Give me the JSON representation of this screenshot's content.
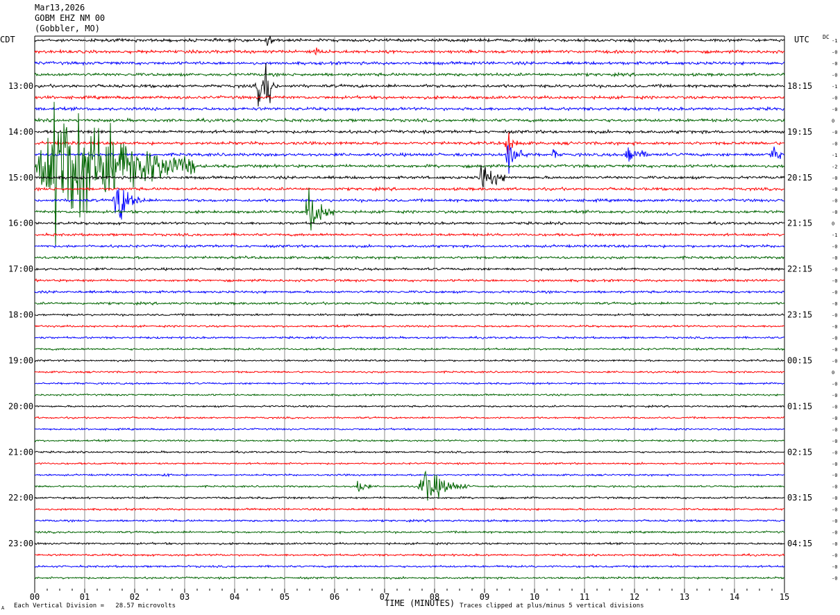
{
  "header": {
    "date": "Mar13,2026",
    "station": "GOBM EHZ NM 00",
    "location": "(Gobbler, MO)"
  },
  "left_tz": "CDT",
  "right_tz": "UTC",
  "dc_label": "DC",
  "footer": {
    "mark": "A",
    "scale": "Each Vertical Division =   28.57 microvolts",
    "clip_note": "Traces clipped at plus/minus 5 vertical divisions"
  },
  "chart_data": {
    "type": "line",
    "title": "",
    "xlabel": "TIME (MINUTES)",
    "ylabel": "",
    "xlim": [
      0,
      15
    ],
    "x_ticks": [
      "00",
      "01",
      "02",
      "03",
      "04",
      "05",
      "06",
      "07",
      "08",
      "09",
      "10",
      "11",
      "12",
      "13",
      "14",
      "15"
    ],
    "trace_minutes": 15,
    "trace_count": 48,
    "trace_colors": [
      "#000000",
      "#ff0000",
      "#0000ff",
      "#006400"
    ],
    "left_labels": [
      {
        "trace": 4,
        "label": "13:00"
      },
      {
        "trace": 8,
        "label": "14:00"
      },
      {
        "trace": 12,
        "label": "15:00"
      },
      {
        "trace": 16,
        "label": "16:00"
      },
      {
        "trace": 20,
        "label": "17:00"
      },
      {
        "trace": 24,
        "label": "18:00"
      },
      {
        "trace": 28,
        "label": "19:00"
      },
      {
        "trace": 32,
        "label": "20:00"
      },
      {
        "trace": 36,
        "label": "21:00"
      },
      {
        "trace": 40,
        "label": "22:00"
      },
      {
        "trace": 44,
        "label": "23:00"
      }
    ],
    "right_labels": [
      {
        "trace": 4,
        "label": "18:15"
      },
      {
        "trace": 8,
        "label": "19:15"
      },
      {
        "trace": 12,
        "label": "20:15"
      },
      {
        "trace": 16,
        "label": "21:15"
      },
      {
        "trace": 20,
        "label": "22:15"
      },
      {
        "trace": 24,
        "label": "23:15"
      },
      {
        "trace": 28,
        "label": "00:15"
      },
      {
        "trace": 32,
        "label": "01:15"
      },
      {
        "trace": 36,
        "label": "02:15"
      },
      {
        "trace": 40,
        "label": "03:15"
      },
      {
        "trace": 44,
        "label": "04:15"
      }
    ],
    "dc_offsets": [
      "-1",
      "-0",
      "-0",
      "-0",
      "-1",
      "-0",
      "-0",
      "0",
      "-0",
      "-0",
      "-1",
      "-2",
      "-0",
      "-0",
      "-0",
      "-0",
      "0",
      "-1",
      "-0",
      "-0",
      "-0",
      "-0",
      "-0",
      "-0",
      "-0",
      "-0",
      "-0",
      "-0",
      "-0",
      "0",
      "-0",
      "-0",
      "-0",
      "-0",
      "-0",
      "-0",
      "-0",
      "-0",
      "-0",
      "-0",
      "-0",
      "-0",
      "-0",
      "-0",
      "-0",
      "-0",
      "-0",
      "-0"
    ],
    "noise_by_trace": [
      1.5,
      1.5,
      1.5,
      1.5,
      1.5,
      1.5,
      1.5,
      1.5,
      1.5,
      1.5,
      1.5,
      1.5,
      1.4,
      1.4,
      1.4,
      1.4,
      1.3,
      1.3,
      1.3,
      1.3,
      1.2,
      1.2,
      1.2,
      1.2,
      1.0,
      1.0,
      1.0,
      1.0,
      0.9,
      0.9,
      0.9,
      0.9,
      0.9,
      0.9,
      0.9,
      0.9,
      0.9,
      0.9,
      0.9,
      0.9,
      1.0,
      1.0,
      1.0,
      1.0,
      1.0,
      1.0,
      1.0,
      1.0
    ],
    "events": [
      {
        "trace": 0,
        "start_min": 4.6,
        "end_min": 4.8,
        "peak": 18
      },
      {
        "trace": 1,
        "start_min": 5.55,
        "end_min": 5.95,
        "peak": 7
      },
      {
        "trace": 4,
        "start_min": 4.4,
        "end_min": 4.9,
        "peak": 18
      },
      {
        "trace": 4,
        "start_min": 4.6,
        "end_min": 4.75,
        "peak": 80
      },
      {
        "trace": 9,
        "start_min": 9.4,
        "end_min": 9.75,
        "peak": 18
      },
      {
        "trace": 10,
        "start_min": 9.4,
        "end_min": 9.9,
        "peak": 22
      },
      {
        "trace": 10,
        "start_min": 10.35,
        "end_min": 10.55,
        "peak": 8
      },
      {
        "trace": 10,
        "start_min": 11.8,
        "end_min": 12.4,
        "peak": 14
      },
      {
        "trace": 10,
        "start_min": 14.7,
        "end_min": 15.0,
        "peak": 16
      },
      {
        "trace": 11,
        "start_min": 0.0,
        "end_min": 3.2,
        "peak": 82
      },
      {
        "trace": 12,
        "start_min": 8.85,
        "end_min": 9.55,
        "peak": 18
      },
      {
        "trace": 14,
        "start_min": 1.55,
        "end_min": 2.2,
        "peak": 28
      },
      {
        "trace": 15,
        "start_min": 5.4,
        "end_min": 6.0,
        "peak": 28
      },
      {
        "trace": 38,
        "start_min": 2.5,
        "end_min": 2.95,
        "peak": 3
      },
      {
        "trace": 39,
        "start_min": 6.4,
        "end_min": 6.75,
        "peak": 12
      },
      {
        "trace": 39,
        "start_min": 7.65,
        "end_min": 8.7,
        "peak": 20
      }
    ]
  }
}
